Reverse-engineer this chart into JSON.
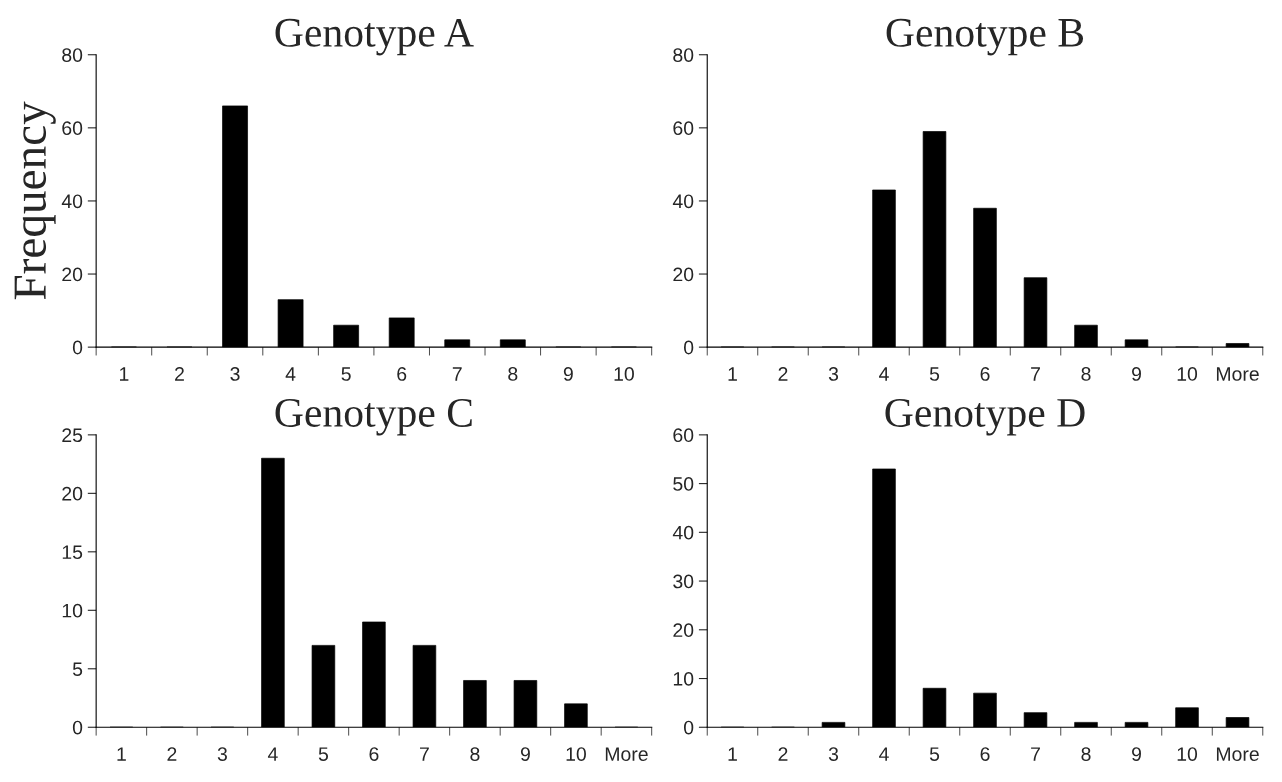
{
  "chart_data": [
    {
      "type": "bar",
      "title": "Genotype A",
      "ylabel": "Frequency",
      "categories": [
        "1",
        "2",
        "3",
        "4",
        "5",
        "6",
        "7",
        "8",
        "9",
        "10"
      ],
      "values": [
        0,
        0,
        66,
        13,
        6,
        8,
        2,
        2,
        0,
        0
      ],
      "color": "#000000",
      "ylim": [
        0,
        80
      ],
      "yticks": [
        0,
        20,
        40,
        60,
        80
      ],
      "grid": false,
      "legend": false
    },
    {
      "type": "bar",
      "title": "Genotype B",
      "categories": [
        "1",
        "2",
        "3",
        "4",
        "5",
        "6",
        "7",
        "8",
        "9",
        "10",
        "More"
      ],
      "values": [
        0,
        0,
        0,
        43,
        59,
        38,
        19,
        6,
        2,
        0,
        1
      ],
      "color": "#000000",
      "ylim": [
        0,
        80
      ],
      "yticks": [
        0,
        20,
        40,
        60,
        80
      ],
      "grid": false,
      "legend": false
    },
    {
      "type": "bar",
      "title": "Genotype C",
      "categories": [
        "1",
        "2",
        "3",
        "4",
        "5",
        "6",
        "7",
        "8",
        "9",
        "10",
        "More"
      ],
      "values": [
        0,
        0,
        0,
        23,
        7,
        9,
        7,
        4,
        4,
        2,
        0
      ],
      "color": "#000000",
      "ylim": [
        0,
        25
      ],
      "yticks": [
        0,
        5,
        10,
        15,
        20,
        25
      ],
      "grid": false,
      "legend": false
    },
    {
      "type": "bar",
      "title": "Genotype D",
      "categories": [
        "1",
        "2",
        "3",
        "4",
        "5",
        "6",
        "7",
        "8",
        "9",
        "10",
        "More"
      ],
      "values": [
        0,
        0,
        1,
        53,
        8,
        7,
        3,
        1,
        1,
        4,
        2
      ],
      "color": "#000000",
      "ylim": [
        0,
        60
      ],
      "yticks": [
        0,
        10,
        20,
        30,
        40,
        50,
        60
      ],
      "grid": false,
      "legend": false
    }
  ]
}
